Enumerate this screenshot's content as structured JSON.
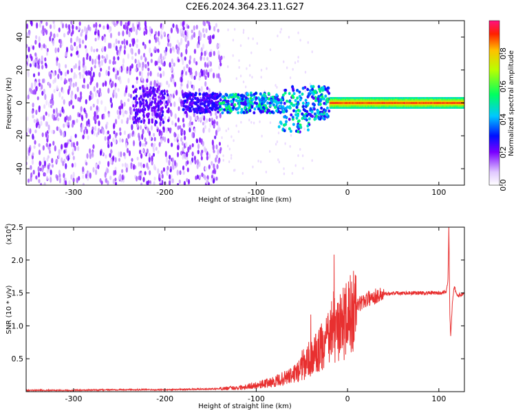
{
  "title": "C2E6.2024.364.23.11.G27",
  "chart_data": [
    {
      "type": "heatmap",
      "xlabel": "Height of straight line (km)",
      "ylabel": "Frequency (Hz)",
      "xlim": [
        -352,
        128
      ],
      "ylim": [
        -50,
        50
      ],
      "x_ticks": [
        "-300",
        "-200",
        "-100",
        "0",
        "100"
      ],
      "y_ticks": [
        "-40",
        "-20",
        "0",
        "20",
        "40"
      ],
      "colorbar": {
        "label": "Normalized spectral amplitude",
        "range": [
          0,
          1
        ],
        "ticks": [
          "0.0",
          "0.2",
          "0.4",
          "0.6",
          "0.8"
        ]
      },
      "features": [
        {
          "x_range": [
            -352,
            -140
          ],
          "freq_range": [
            -50,
            50
          ],
          "amplitude": 0.1
        },
        {
          "x_range": [
            -230,
            -200
          ],
          "freq_center": -3,
          "amplitude": 0.15
        },
        {
          "x_range": [
            -140,
            -20
          ],
          "freq_center": 0,
          "amplitude": 0.4
        },
        {
          "x_range": [
            -20,
            128
          ],
          "freq_center": 0,
          "amplitude": 0.9
        }
      ]
    },
    {
      "type": "line",
      "xlabel": "Height of straight line (km)",
      "ylabel": "SNR (10 * v/v)",
      "y_multiplier": "(x10",
      "y_multiplier_exp": "4",
      "y_multiplier_close": ")",
      "xlim": [
        -352,
        128
      ],
      "ylim": [
        0,
        2.5
      ],
      "x_ticks": [
        "-300",
        "-200",
        "-100",
        "0",
        "100"
      ],
      "y_ticks": [
        "0.5",
        "1.0",
        "1.5",
        "2.0",
        "2.5"
      ],
      "color": "#e83030",
      "series": [
        {
          "x": [
            -352,
            -300,
            -250,
            -200,
            -150,
            -120,
            -100,
            -80,
            -60,
            -50,
            -40,
            -30,
            -20,
            -15,
            -10,
            -5,
            0,
            10,
            20,
            30,
            40,
            50,
            60,
            80,
            100,
            108,
            110,
            111,
            112,
            113,
            115,
            117,
            120,
            128
          ],
          "y": [
            0.02,
            0.02,
            0.03,
            0.03,
            0.04,
            0.06,
            0.1,
            0.15,
            0.25,
            0.35,
            0.5,
            0.65,
            0.8,
            1.0,
            0.9,
            1.05,
            1.1,
            1.3,
            1.4,
            1.45,
            1.48,
            1.5,
            1.5,
            1.5,
            1.5,
            1.52,
            1.7,
            2.5,
            1.2,
            0.85,
            1.4,
            1.6,
            1.45,
            1.5
          ]
        }
      ]
    }
  ]
}
